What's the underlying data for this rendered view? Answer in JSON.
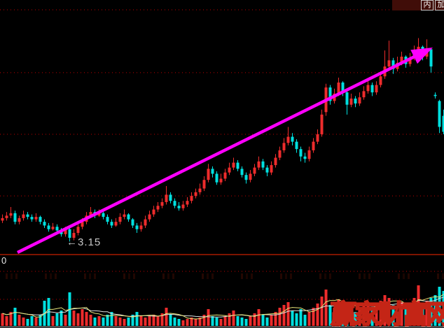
{
  "toolbar": {
    "buttons": [
      "内",
      "加"
    ]
  },
  "axis": {
    "bottom_left_label": "0"
  },
  "annotations": {
    "low": {
      "arrow": "←",
      "value": "3.15"
    }
  },
  "watermark": "赢家财富网",
  "chart_data": {
    "type": "candlestick",
    "title": "",
    "xlabel": "",
    "ylabel": "",
    "ylim": [
      3.05,
      5.03
    ],
    "grid_prices": [
      5.03,
      4.52,
      4.02,
      3.52
    ],
    "low_annotation_price": 3.15,
    "legend": [],
    "colors": {
      "up": "#ee2c2c",
      "down": "#00e0e0",
      "grid": "#c00000",
      "divider": "#7d1400",
      "bottom_border": "#b8b8b8",
      "volume_ma5": "#e6e67a",
      "volume_ma10": "#e0e0e0",
      "arrow": "#ff00ff"
    },
    "trend_arrow": {
      "from": [
        25,
        361
      ],
      "to": [
        618,
        68
      ]
    },
    "volume_grid_values": [
      78,
      38
    ],
    "candles": [
      [
        3.32,
        3.37,
        3.3,
        3.34
      ],
      [
        3.34,
        3.39,
        3.32,
        3.36
      ],
      [
        3.36,
        3.43,
        3.34,
        3.38
      ],
      [
        3.38,
        3.4,
        3.29,
        3.31
      ],
      [
        3.31,
        3.36,
        3.29,
        3.34
      ],
      [
        3.34,
        3.4,
        3.32,
        3.37
      ],
      [
        3.37,
        3.39,
        3.33,
        3.35
      ],
      [
        3.35,
        3.37,
        3.31,
        3.33
      ],
      [
        3.33,
        3.38,
        3.31,
        3.35
      ],
      [
        3.35,
        3.36,
        3.29,
        3.31
      ],
      [
        3.31,
        3.33,
        3.26,
        3.28
      ],
      [
        3.28,
        3.3,
        3.23,
        3.25
      ],
      [
        3.25,
        3.3,
        3.24,
        3.27
      ],
      [
        3.27,
        3.29,
        3.22,
        3.24
      ],
      [
        3.24,
        3.26,
        3.19,
        3.21
      ],
      [
        3.21,
        3.27,
        3.19,
        3.25
      ],
      [
        3.25,
        3.26,
        3.15,
        3.18
      ],
      [
        3.18,
        3.25,
        3.16,
        3.22
      ],
      [
        3.22,
        3.29,
        3.2,
        3.27
      ],
      [
        3.27,
        3.34,
        3.25,
        3.31
      ],
      [
        3.31,
        3.39,
        3.29,
        3.36
      ],
      [
        3.36,
        3.43,
        3.34,
        3.39
      ],
      [
        3.39,
        3.41,
        3.34,
        3.36
      ],
      [
        3.36,
        3.41,
        3.35,
        3.38
      ],
      [
        3.38,
        3.4,
        3.33,
        3.35
      ],
      [
        3.35,
        3.37,
        3.29,
        3.31
      ],
      [
        3.31,
        3.33,
        3.26,
        3.28
      ],
      [
        3.28,
        3.34,
        3.27,
        3.31
      ],
      [
        3.31,
        3.38,
        3.29,
        3.35
      ],
      [
        3.35,
        3.41,
        3.33,
        3.37
      ],
      [
        3.37,
        3.38,
        3.31,
        3.33
      ],
      [
        3.33,
        3.34,
        3.26,
        3.28
      ],
      [
        3.28,
        3.3,
        3.22,
        3.25
      ],
      [
        3.25,
        3.31,
        3.23,
        3.28
      ],
      [
        3.28,
        3.36,
        3.26,
        3.33
      ],
      [
        3.33,
        3.4,
        3.31,
        3.37
      ],
      [
        3.37,
        3.44,
        3.35,
        3.41
      ],
      [
        3.41,
        3.47,
        3.39,
        3.44
      ],
      [
        3.44,
        3.5,
        3.42,
        3.47
      ],
      [
        3.47,
        3.6,
        3.45,
        3.53
      ],
      [
        3.53,
        3.55,
        3.46,
        3.48
      ],
      [
        3.48,
        3.5,
        3.42,
        3.44
      ],
      [
        3.44,
        3.47,
        3.4,
        3.42
      ],
      [
        3.42,
        3.48,
        3.4,
        3.45
      ],
      [
        3.45,
        3.51,
        3.43,
        3.48
      ],
      [
        3.48,
        3.55,
        3.46,
        3.52
      ],
      [
        3.52,
        3.58,
        3.5,
        3.55
      ],
      [
        3.55,
        3.62,
        3.53,
        3.58
      ],
      [
        3.58,
        3.68,
        3.56,
        3.65
      ],
      [
        3.65,
        3.78,
        3.63,
        3.74
      ],
      [
        3.74,
        3.76,
        3.67,
        3.7
      ],
      [
        3.7,
        3.72,
        3.61,
        3.63
      ],
      [
        3.63,
        3.7,
        3.61,
        3.66
      ],
      [
        3.66,
        3.74,
        3.64,
        3.71
      ],
      [
        3.71,
        3.79,
        3.69,
        3.75
      ],
      [
        3.75,
        3.83,
        3.73,
        3.79
      ],
      [
        3.79,
        3.81,
        3.72,
        3.74
      ],
      [
        3.74,
        3.76,
        3.67,
        3.69
      ],
      [
        3.69,
        3.71,
        3.62,
        3.65
      ],
      [
        3.65,
        3.73,
        3.63,
        3.7
      ],
      [
        3.7,
        3.78,
        3.68,
        3.75
      ],
      [
        3.75,
        3.84,
        3.73,
        3.8
      ],
      [
        3.8,
        3.82,
        3.73,
        3.75
      ],
      [
        3.75,
        3.77,
        3.68,
        3.71
      ],
      [
        3.71,
        3.8,
        3.69,
        3.77
      ],
      [
        3.77,
        3.86,
        3.75,
        3.83
      ],
      [
        3.83,
        3.92,
        3.81,
        3.89
      ],
      [
        3.89,
        3.99,
        3.87,
        3.95
      ],
      [
        3.95,
        4.08,
        3.93,
        4.0
      ],
      [
        4.0,
        4.03,
        3.93,
        3.96
      ],
      [
        3.96,
        3.98,
        3.87,
        3.9
      ],
      [
        3.9,
        3.92,
        3.8,
        3.84
      ],
      [
        3.84,
        3.87,
        3.79,
        3.82
      ],
      [
        3.82,
        3.92,
        3.8,
        3.89
      ],
      [
        3.89,
        3.99,
        3.87,
        3.96
      ],
      [
        3.96,
        4.06,
        3.94,
        4.02
      ],
      [
        4.02,
        4.22,
        4.0,
        4.18
      ],
      [
        4.2,
        4.43,
        4.17,
        4.4
      ],
      [
        4.4,
        4.42,
        4.26,
        4.29
      ],
      [
        4.29,
        4.39,
        4.27,
        4.35
      ],
      [
        4.35,
        4.48,
        4.33,
        4.44
      ],
      [
        4.44,
        4.45,
        4.33,
        4.36
      ],
      [
        4.36,
        4.38,
        4.18,
        4.26
      ],
      [
        4.26,
        4.35,
        4.24,
        4.31
      ],
      [
        4.31,
        4.33,
        4.24,
        4.27
      ],
      [
        4.27,
        4.36,
        4.25,
        4.32
      ],
      [
        4.32,
        4.41,
        4.3,
        4.37
      ],
      [
        4.37,
        4.46,
        4.35,
        4.42
      ],
      [
        4.42,
        4.44,
        4.33,
        4.36
      ],
      [
        4.36,
        4.45,
        4.34,
        4.42
      ],
      [
        4.42,
        4.53,
        4.4,
        4.49
      ],
      [
        4.49,
        4.7,
        4.47,
        4.57
      ],
      [
        4.57,
        4.78,
        4.55,
        4.62
      ],
      [
        4.62,
        4.64,
        4.51,
        4.55
      ],
      [
        4.55,
        4.65,
        4.53,
        4.6
      ],
      [
        4.6,
        4.69,
        4.58,
        4.65
      ],
      [
        4.65,
        4.66,
        4.56,
        4.59
      ],
      [
        4.59,
        4.68,
        4.57,
        4.64
      ],
      [
        4.64,
        4.74,
        4.62,
        4.69
      ],
      [
        4.69,
        4.8,
        4.67,
        4.73
      ],
      [
        4.73,
        4.74,
        4.62,
        4.65
      ],
      [
        4.65,
        4.79,
        4.63,
        4.71
      ],
      [
        4.71,
        4.72,
        4.52,
        4.57
      ],
      [
        4.34,
        4.36,
        4.31,
        4.33
      ],
      [
        4.29,
        4.3,
        4.03,
        4.08
      ],
      [
        4.17,
        4.22,
        4.02,
        4.04
      ]
    ],
    "volumes": [
      18,
      14,
      20,
      26,
      16,
      12,
      10,
      14,
      12,
      16,
      36,
      40,
      14,
      18,
      22,
      16,
      48,
      22,
      18,
      24,
      20,
      16,
      12,
      14,
      12,
      16,
      20,
      14,
      12,
      10,
      12,
      16,
      20,
      14,
      12,
      14,
      16,
      14,
      18,
      26,
      16,
      12,
      10,
      8,
      10,
      12,
      10,
      12,
      16,
      24,
      14,
      12,
      10,
      14,
      18,
      22,
      14,
      12,
      10,
      14,
      18,
      24,
      16,
      12,
      16,
      20,
      26,
      30,
      34,
      22,
      18,
      24,
      16,
      20,
      26,
      32,
      42,
      52,
      30,
      26,
      38,
      28,
      34,
      24,
      20,
      24,
      28,
      34,
      24,
      28,
      36,
      44,
      40,
      30,
      28,
      34,
      26,
      30,
      40,
      58,
      30,
      36,
      40,
      44,
      56,
      50
    ]
  }
}
